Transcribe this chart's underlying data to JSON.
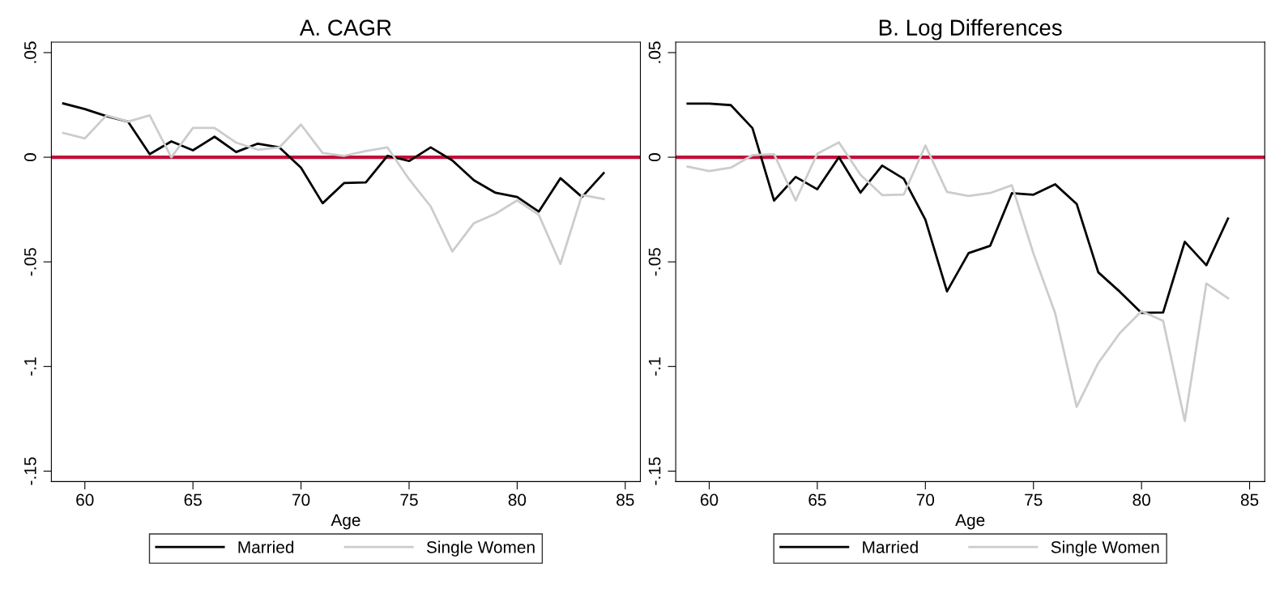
{
  "chart_data": [
    {
      "type": "line",
      "title": "A. CAGR",
      "xlabel": "Age",
      "x": [
        59,
        60,
        61,
        62,
        63,
        64,
        65,
        66,
        67,
        68,
        69,
        70,
        71,
        72,
        73,
        74,
        75,
        76,
        77,
        78,
        79,
        80,
        81,
        82,
        83,
        84
      ],
      "series": [
        {
          "name": "Married",
          "color": "#000000",
          "values": [
            0.0257,
            0.023,
            0.0196,
            0.017,
            0.0015,
            0.0076,
            0.0033,
            0.0098,
            0.0025,
            0.0065,
            0.0047,
            -0.005,
            -0.022,
            -0.0123,
            -0.012,
            0.0007,
            -0.0018,
            0.0047,
            -0.0015,
            -0.011,
            -0.017,
            -0.019,
            -0.026,
            -0.01,
            -0.019,
            -0.0076
          ]
        },
        {
          "name": "Single Women",
          "color": "#cccccc",
          "values": [
            0.0116,
            0.009,
            0.02,
            0.017,
            0.02,
            0.0,
            0.014,
            0.014,
            0.007,
            0.0036,
            0.0047,
            0.0156,
            0.002,
            0.0007,
            0.003,
            0.0047,
            -0.0105,
            -0.0235,
            -0.045,
            -0.0315,
            -0.027,
            -0.0206,
            -0.0275,
            -0.051,
            -0.018,
            -0.02
          ]
        }
      ],
      "xlim": [
        58.45,
        85.7
      ],
      "ylim": [
        -0.155,
        0.055
      ],
      "xticks": [
        60,
        65,
        70,
        75,
        80,
        85
      ],
      "yticks": [
        {
          "value": 0.05,
          "label": ".05"
        },
        {
          "value": 0,
          "label": "0"
        },
        {
          "value": -0.05,
          "label": "-.05"
        },
        {
          "value": -0.1,
          "label": "-.1"
        },
        {
          "value": -0.15,
          "label": "-.15"
        }
      ],
      "ref_lines": [
        {
          "axis": "y",
          "value": 0,
          "color": "#c0103a"
        }
      ],
      "legend": "bottom",
      "grid": false,
      "marker": "none",
      "line_style": "solid"
    },
    {
      "type": "line",
      "title": "B. Log Differences",
      "xlabel": "Age",
      "x": [
        59,
        60,
        61,
        62,
        63,
        64,
        65,
        66,
        67,
        68,
        69,
        70,
        71,
        72,
        73,
        74,
        75,
        76,
        77,
        78,
        79,
        80,
        81,
        82,
        83,
        84
      ],
      "series": [
        {
          "name": "Married",
          "color": "#000000",
          "values": [
            0.0256,
            0.0256,
            0.0249,
            0.0139,
            -0.0207,
            -0.0094,
            -0.0153,
            0.0,
            -0.0169,
            -0.004,
            -0.0103,
            -0.0298,
            -0.0641,
            -0.0458,
            -0.0423,
            -0.0172,
            -0.0179,
            -0.0129,
            -0.0223,
            -0.055,
            -0.0643,
            -0.0744,
            -0.0742,
            -0.0404,
            -0.0516,
            -0.0293
          ]
        },
        {
          "name": "Single Women",
          "color": "#cccccc",
          "values": [
            -0.0045,
            -0.0066,
            -0.005,
            0.001,
            0.0014,
            -0.0207,
            0.0017,
            0.0071,
            -0.0084,
            -0.0181,
            -0.0178,
            0.0056,
            -0.0166,
            -0.0185,
            -0.0171,
            -0.0134,
            -0.046,
            -0.0744,
            -0.1193,
            -0.0983,
            -0.084,
            -0.0735,
            -0.0782,
            -0.126,
            -0.0603,
            -0.0674
          ]
        }
      ],
      "xlim": [
        58.45,
        85.7
      ],
      "ylim": [
        -0.155,
        0.055
      ],
      "xticks": [
        60,
        65,
        70,
        75,
        80,
        85
      ],
      "yticks": [
        {
          "value": 0.05,
          "label": ".05"
        },
        {
          "value": 0,
          "label": "0"
        },
        {
          "value": -0.05,
          "label": "-.05"
        },
        {
          "value": -0.1,
          "label": "-.1"
        },
        {
          "value": -0.15,
          "label": "-.15"
        }
      ],
      "ref_lines": [
        {
          "axis": "y",
          "value": 0,
          "color": "#c0103a"
        }
      ],
      "legend": "bottom",
      "grid": false,
      "marker": "none",
      "line_style": "solid"
    }
  ]
}
